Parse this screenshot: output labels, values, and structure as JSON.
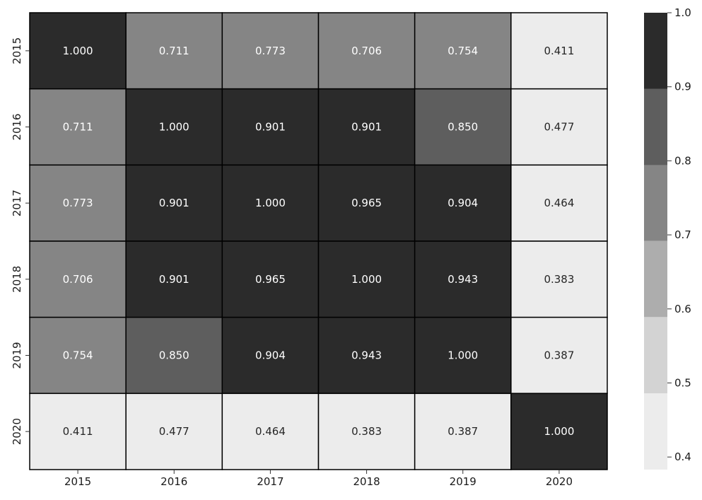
{
  "chart_data": {
    "type": "heatmap",
    "title": "",
    "xlabel": "",
    "ylabel": "",
    "x_categories": [
      "2015",
      "2016",
      "2017",
      "2018",
      "2019",
      "2020"
    ],
    "y_categories": [
      "2015",
      "2016",
      "2017",
      "2018",
      "2019",
      "2020"
    ],
    "values": [
      [
        1.0,
        0.711,
        0.773,
        0.706,
        0.754,
        0.411
      ],
      [
        0.711,
        1.0,
        0.901,
        0.901,
        0.85,
        0.477
      ],
      [
        0.773,
        0.901,
        1.0,
        0.965,
        0.904,
        0.464
      ],
      [
        0.706,
        0.901,
        0.965,
        1.0,
        0.943,
        0.383
      ],
      [
        0.754,
        0.85,
        0.904,
        0.943,
        1.0,
        0.387
      ],
      [
        0.411,
        0.477,
        0.464,
        0.383,
        0.387,
        1.0
      ]
    ],
    "value_format": "0.000",
    "colorbar": {
      "ticks": [
        "0.4",
        "0.5",
        "0.6",
        "0.7",
        "0.8",
        "0.9",
        "1.0"
      ],
      "range": [
        0.383,
        1.0
      ],
      "bins": [
        {
          "min": 0.383,
          "max": 0.486,
          "color": "#ececec"
        },
        {
          "min": 0.486,
          "max": 0.589,
          "color": "#d3d3d3"
        },
        {
          "min": 0.589,
          "max": 0.692,
          "color": "#adadad"
        },
        {
          "min": 0.692,
          "max": 0.794,
          "color": "#858585"
        },
        {
          "min": 0.794,
          "max": 0.897,
          "color": "#5e5e5e"
        },
        {
          "min": 0.897,
          "max": 1.0,
          "color": "#2b2b2b"
        }
      ]
    },
    "cell_border_color": "#000000",
    "text_color_dark_cells": "#ffffff",
    "text_color_light_cells": "#262626",
    "grid": false
  }
}
